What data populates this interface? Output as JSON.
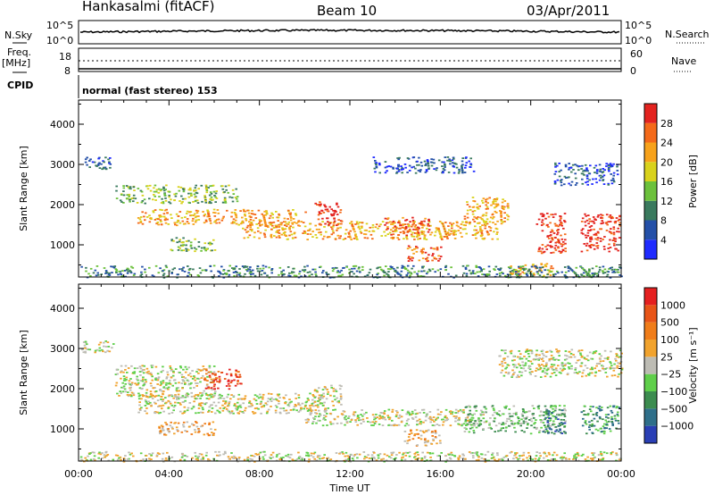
{
  "header": {
    "station": "Hankasalmi (fitACF)",
    "beam": "Beam 10",
    "date": "03/Apr/2011"
  },
  "strip_labels": {
    "nsky": "N.Sky",
    "nsearch": "N.Search",
    "freq": "Freq.",
    "freq_unit": "[MHz]",
    "nave": "Nave",
    "cpid": "CPID",
    "cpid_text": "normal (fast stereo) 153",
    "noise_ticks_left": [
      "10^5",
      "10^0"
    ],
    "noise_ticks_right": [
      "10^5",
      "10^0"
    ],
    "freq_ticks": [
      "18",
      "8"
    ],
    "nave_ticks": [
      "60",
      "0"
    ]
  },
  "chart_data": [
    {
      "type": "heatmap",
      "panel": "power",
      "ylabel": "Slant Range [km]",
      "xlabel": "",
      "yticks": [
        1000,
        2000,
        3000,
        4000
      ],
      "ylim": [
        200,
        4600
      ],
      "xlim": [
        0,
        24
      ],
      "colorbar": {
        "label": "Power [dB]",
        "tick_values": [
          4,
          8,
          12,
          16,
          20,
          24,
          28
        ],
        "colors": [
          "#1f2bff",
          "#2450a8",
          "#3a7a5e",
          "#6cc13c",
          "#d9d21c",
          "#f7a21b",
          "#f46a1a",
          "#e3231f"
        ]
      },
      "bands": [
        {
          "x": [
            1.6,
            7.0
          ],
          "y": [
            2050,
            2500
          ],
          "level": 3
        },
        {
          "x": [
            2.6,
            10.0
          ],
          "y": [
            1500,
            1900
          ],
          "level": 5
        },
        {
          "x": [
            7.0,
            18.5
          ],
          "y": [
            1150,
            1600
          ],
          "level": 5
        },
        {
          "x": [
            10.4,
            11.6
          ],
          "y": [
            1500,
            2100
          ],
          "level": 7
        },
        {
          "x": [
            13.5,
            15.5
          ],
          "y": [
            1250,
            1700
          ],
          "level": 6
        },
        {
          "x": [
            17.0,
            19.0
          ],
          "y": [
            1500,
            2200
          ],
          "level": 5
        },
        {
          "x": [
            20.2,
            21.5
          ],
          "y": [
            800,
            1800
          ],
          "level": 7
        },
        {
          "x": [
            22.2,
            23.9
          ],
          "y": [
            850,
            1800
          ],
          "level": 7
        },
        {
          "x": [
            21.0,
            23.8
          ],
          "y": [
            2500,
            3050
          ],
          "level": 1
        },
        {
          "x": [
            0.1,
            1.5
          ],
          "y": [
            2900,
            3200
          ],
          "level": 1
        },
        {
          "x": [
            13.0,
            17.5
          ],
          "y": [
            2800,
            3200
          ],
          "level": 1
        },
        {
          "x": [
            14.5,
            16.0
          ],
          "y": [
            600,
            1000
          ],
          "level": 6
        },
        {
          "x": [
            4.0,
            6.0
          ],
          "y": [
            850,
            1200
          ],
          "level": 3
        },
        {
          "x": [
            19.0,
            21.0
          ],
          "y": [
            250,
            550
          ],
          "level": 5
        },
        {
          "x": [
            0.0,
            24.0
          ],
          "y": [
            200,
            500
          ],
          "level": 2
        }
      ]
    },
    {
      "type": "heatmap",
      "panel": "velocity",
      "ylabel": "Slant Range [km]",
      "xlabel": "Time UT",
      "yticks": [
        1000,
        2000,
        3000,
        4000
      ],
      "ylim": [
        200,
        4600
      ],
      "xlim": [
        0,
        24
      ],
      "xticks": [
        "00:00",
        "04:00",
        "08:00",
        "12:00",
        "16:00",
        "20:00",
        "00:00"
      ],
      "colorbar": {
        "label": "Velocity [m s⁻¹]",
        "tick_values": [
          1000,
          500,
          100,
          25,
          -25,
          -100,
          -500,
          -1000
        ],
        "colors": [
          "#2a3fb5",
          "#2f6f8a",
          "#3c8c4f",
          "#5fcf4a",
          "#bdbcb4",
          "#f1a32e",
          "#f07d1a",
          "#e85518",
          "#e52020"
        ]
      },
      "bands": [
        {
          "x": [
            0.1,
            1.5
          ],
          "y": [
            2900,
            3200
          ],
          "level": 4
        },
        {
          "x": [
            1.6,
            6.0
          ],
          "y": [
            1800,
            2600
          ],
          "level": 4
        },
        {
          "x": [
            5.5,
            7.2
          ],
          "y": [
            2000,
            2500
          ],
          "level": 7
        },
        {
          "x": [
            2.6,
            11.0
          ],
          "y": [
            1400,
            1900
          ],
          "level": 4
        },
        {
          "x": [
            10.0,
            18.0
          ],
          "y": [
            1100,
            1500
          ],
          "level": 4
        },
        {
          "x": [
            10.4,
            11.6
          ],
          "y": [
            1600,
            2100
          ],
          "level": 4
        },
        {
          "x": [
            17.0,
            21.5
          ],
          "y": [
            900,
            1600
          ],
          "level": 3
        },
        {
          "x": [
            20.5,
            21.5
          ],
          "y": [
            900,
            1500
          ],
          "level": 1
        },
        {
          "x": [
            22.2,
            23.9
          ],
          "y": [
            900,
            1600
          ],
          "level": 2
        },
        {
          "x": [
            18.5,
            24.0
          ],
          "y": [
            2300,
            3000
          ],
          "level": 4
        },
        {
          "x": [
            14.3,
            16.0
          ],
          "y": [
            600,
            1000
          ],
          "level": 5
        },
        {
          "x": [
            3.5,
            6.0
          ],
          "y": [
            850,
            1200
          ],
          "level": 5
        },
        {
          "x": [
            0.0,
            24.0
          ],
          "y": [
            200,
            450
          ],
          "level": 4
        }
      ]
    }
  ]
}
